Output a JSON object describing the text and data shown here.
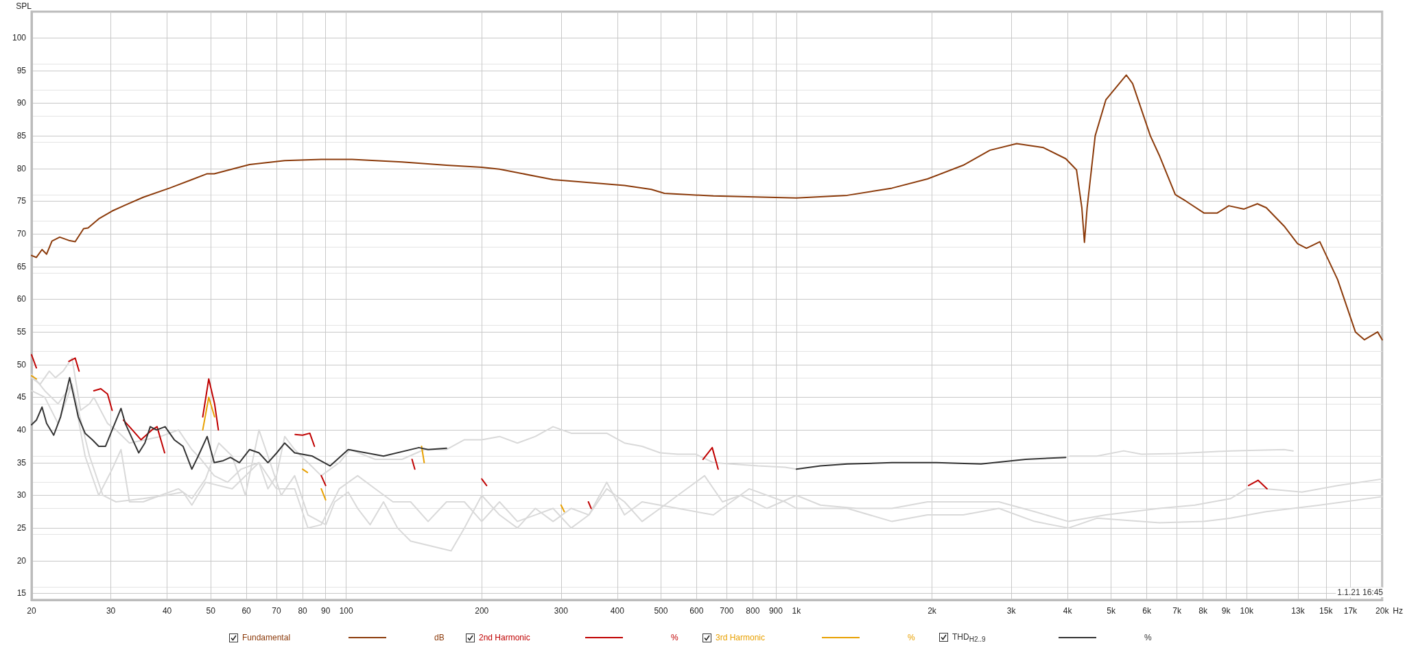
{
  "chart_data": {
    "type": "line",
    "ylabel": "SPL",
    "log": "x",
    "grid": true,
    "legend": "bottom",
    "marker": "none",
    "line_style": "solid",
    "xlim": [
      20,
      20000
    ],
    "ylim": [
      14,
      104
    ],
    "xticks": [
      20,
      30,
      40,
      50,
      60,
      70,
      80,
      90,
      100,
      200,
      300,
      400,
      500,
      600,
      700,
      800,
      900,
      {
        "value": 1000,
        "label": "1k"
      },
      {
        "value": 2000,
        "label": "2k"
      },
      {
        "value": 3000,
        "label": "3k"
      },
      {
        "value": 4000,
        "label": "4k"
      },
      {
        "value": 5000,
        "label": "5k"
      },
      {
        "value": 6000,
        "label": "6k"
      },
      {
        "value": 7000,
        "label": "7k"
      },
      {
        "value": 8000,
        "label": "8k"
      },
      {
        "value": 9000,
        "label": "9k"
      },
      {
        "value": 10000,
        "label": "10k"
      },
      {
        "value": 13000,
        "label": "13k"
      },
      {
        "value": 15000,
        "label": "15k"
      },
      {
        "value": 17000,
        "label": "17k"
      },
      {
        "value": 20000,
        "label": "20k"
      }
    ],
    "xlabel": "Hz",
    "yticks": [
      15,
      20,
      25,
      30,
      35,
      40,
      45,
      50,
      55,
      60,
      65,
      70,
      75,
      80,
      85,
      90,
      95,
      100
    ],
    "annotations": [
      "dB",
      "%",
      "%",
      "%",
      "1.1.21 16:45"
    ],
    "series": [
      {
        "color": "#d9d9d9",
        "x": [
          20,
          20.9,
          21.9,
          22.6,
          23.5,
          24.6,
          25.7,
          26.9,
          27.5,
          29.5,
          30.8,
          33.0,
          38.7,
          42.4,
          45.4,
          47.6,
          50.9,
          54.5,
          58.4,
          64,
          67,
          70,
          73,
          76.8,
          82.2,
          88,
          96.5,
          102,
          116,
          133,
          149,
          167,
          183,
          200,
          219,
          240,
          263,
          288,
          316,
          346,
          379,
          415,
          454,
          498,
          545,
          597,
          654,
          717,
          822,
          943,
          1000,
          1131,
          4050,
          4650,
          5332,
          5840,
          7008,
          9210,
          12108,
          12680
        ],
        "values": [
          48,
          47,
          49,
          48,
          49,
          51,
          43,
          44,
          45,
          41,
          40,
          38,
          39,
          40,
          37,
          35.5,
          33,
          32,
          34,
          35,
          31,
          33,
          39,
          37,
          35,
          33,
          35,
          37,
          35.5,
          35.5,
          37,
          37,
          38.5,
          38.5,
          39,
          38,
          39,
          40.5,
          39.5,
          39.5,
          39.5,
          38,
          37.5,
          36.5,
          36.3,
          36.3,
          35,
          34.8,
          34.5,
          34.3,
          34,
          null,
          36,
          36,
          36.8,
          36.3,
          36.4,
          36.8,
          37,
          36.8
        ]
      },
      {
        "color": "#d9d9d9",
        "x": [
          20,
          21.4,
          22.9,
          24.6,
          26.3,
          28.2,
          30.2,
          31.6,
          33.0,
          35.4,
          38.7,
          42.4,
          45.4,
          48.7,
          52.1,
          55.8,
          59.7,
          64,
          67,
          71.7,
          76.8,
          82.2,
          90.1,
          94.3,
          101,
          106,
          113,
          121,
          130,
          139,
          149,
          171,
          183,
          200,
          219,
          240,
          263,
          288,
          316,
          346,
          379,
          415,
          454,
          498,
          545,
          625,
          685,
          751,
          860,
          1000,
          1131,
          1358,
          1630,
          1954,
          2346,
          2816,
          3380,
          4020,
          4866,
          6398,
          7676,
          9210,
          10000,
          11056,
          13272,
          15924,
          20000
        ],
        "values": [
          48.5,
          46,
          44,
          47,
          36,
          30,
          34,
          37,
          29,
          29,
          30,
          31,
          29.5,
          32.5,
          38,
          36,
          30,
          40,
          36,
          30,
          33,
          27,
          25.5,
          29,
          30.5,
          28,
          25.5,
          29,
          25,
          23,
          22.5,
          21.5,
          25,
          30,
          27,
          25,
          28,
          26,
          28,
          27,
          31,
          29,
          26,
          28,
          30,
          33,
          29,
          30,
          28,
          30,
          28.5,
          28,
          28,
          29,
          29,
          29,
          27.5,
          26,
          27,
          28,
          28.5,
          29.5,
          31,
          31,
          30.5,
          31.5,
          32.5
        ]
      },
      {
        "color": "#d9d9d9",
        "x": [
          20,
          21.4,
          22.9,
          24.6,
          26.9,
          28.8,
          30.8,
          35.4,
          39.6,
          43.4,
          45.4,
          48.7,
          55.8,
          64,
          70,
          76.8,
          82.2,
          88,
          96.5,
          106,
          116,
          127,
          139,
          152,
          167,
          183,
          200,
          219,
          240,
          263,
          288,
          316,
          346,
          379,
          415,
          454,
          545,
          654,
          785,
          943,
          1000,
          1297,
          1630,
          1954,
          2346,
          2816,
          3380,
          4020,
          4650,
          6398,
          8036,
          9210,
          11056,
          14538,
          20000
        ],
        "values": [
          46,
          45,
          41,
          47,
          36,
          30,
          29,
          29.5,
          30,
          30.5,
          28.5,
          32,
          31,
          35,
          31,
          31,
          25,
          25.5,
          31,
          33,
          31,
          29,
          29,
          26,
          29,
          29,
          26,
          29,
          26,
          27,
          28,
          25,
          27,
          32,
          27,
          29,
          28,
          27,
          31,
          29,
          28,
          28,
          26,
          27,
          27,
          28,
          26,
          25,
          26.5,
          25.8,
          26,
          26.5,
          27.5,
          28.5,
          29.8
        ]
      },
      {
        "name": "Fundamental",
        "color": "#8b3a0a",
        "x": [
          20,
          20.5,
          21.1,
          21.6,
          22.2,
          23.1,
          24.2,
          25.0,
          26.1,
          26.7,
          28.2,
          30.2,
          32.3,
          35.4,
          40.5,
          45.4,
          49.1,
          50.9,
          61,
          73,
          88,
          103,
          133,
          167,
          200,
          219,
          288,
          415,
          476,
          509,
          654,
          1000,
          1297,
          1630,
          1954,
          2346,
          2690,
          3084,
          3537,
          3964,
          4188,
          4304,
          4362,
          4422,
          4608,
          4866,
          5404,
          5580,
          6110,
          6398,
          6942,
          7334,
          8036,
          8605,
          9126,
          9864,
          10564,
          11056,
          12108,
          12972,
          13578,
          14538,
          15924,
          17440,
          18254,
          19540,
          20000
        ],
        "values": [
          66.7,
          66.4,
          67.6,
          66.9,
          68.9,
          69.5,
          69.0,
          68.8,
          70.8,
          70.9,
          72.3,
          73.5,
          74.4,
          75.6,
          77.0,
          78.3,
          79.2,
          79.2,
          80.6,
          81.2,
          81.4,
          81.4,
          81.0,
          80.5,
          80.2,
          79.9,
          78.3,
          77.4,
          76.8,
          76.2,
          75.8,
          75.5,
          75.9,
          77.0,
          78.4,
          80.5,
          82.8,
          83.8,
          83.2,
          81.5,
          79.8,
          74,
          68.7,
          74,
          85,
          90.5,
          94.3,
          93,
          85,
          82,
          76,
          75,
          73.2,
          73.2,
          74.3,
          73.8,
          74.6,
          74.0,
          71.2,
          68.5,
          67.8,
          68.8,
          63,
          55,
          53.8,
          55,
          53.8
        ]
      },
      {
        "name": "2nd Harmonic",
        "color": "#c00000",
        "x": [
          20,
          20.5,
          21.5,
          24.2,
          25,
          25.5,
          26,
          27.5,
          28.5,
          29.5,
          30.2,
          31,
          32,
          33,
          35,
          37,
          38,
          39.5,
          42,
          48,
          49.5,
          51,
          52,
          60,
          77,
          80,
          83,
          85,
          87,
          88,
          90,
          100,
          140,
          142,
          160,
          200,
          205,
          240,
          345,
          350,
          600,
          620,
          650,
          670,
          10000,
          10100,
          10600,
          11100
        ],
        "values": [
          51.5,
          49.5,
          null,
          50.5,
          51,
          49,
          null,
          46,
          46.3,
          45.5,
          43,
          null,
          41.5,
          40.5,
          38.5,
          40,
          40.5,
          36.5,
          null,
          42,
          47.8,
          44,
          40,
          null,
          39.3,
          39.2,
          39.5,
          37.5,
          null,
          33,
          31.5,
          null,
          35.5,
          34,
          null,
          32.5,
          31.5,
          null,
          29,
          28,
          null,
          35.5,
          37.3,
          34,
          null,
          31.5,
          32.3,
          31.0
        ]
      },
      {
        "name": "3rd Harmonic",
        "color": "#e8a000",
        "x": [
          20,
          20.5,
          22,
          48,
          49.5,
          51,
          60,
          80,
          82,
          87,
          88,
          90,
          100,
          147,
          149,
          200,
          300,
          305
        ],
        "values": [
          48.3,
          47.8,
          null,
          40,
          45,
          42,
          null,
          34,
          33.5,
          null,
          31,
          29.3,
          null,
          37.5,
          35,
          null,
          28.5,
          27.5
        ]
      },
      {
        "name": "THD$_{H2..9}$",
        "color": "#333333",
        "x": [
          20,
          20.5,
          21.1,
          21.6,
          22.4,
          23.2,
          24.3,
          25.4,
          26.3,
          27.3,
          28.2,
          29.2,
          30.2,
          31.6,
          32.3,
          33.8,
          34.6,
          35.7,
          36.7,
          37.9,
          39.6,
          41.5,
          43.4,
          45.4,
          46.9,
          49.1,
          50.9,
          53.3,
          55.3,
          57.9,
          61,
          64,
          67,
          70.1,
          73,
          76.8,
          84.1,
          92.1,
          101,
          121,
          145,
          152,
          167,
          300,
          1000,
          1131,
          1297,
          1630,
          2046,
          2570,
          3229,
          3964
        ],
        "values": [
          40.8,
          41.5,
          43.5,
          41,
          39.2,
          42,
          48,
          42,
          39.5,
          38.5,
          37.5,
          37.5,
          40,
          43.3,
          41,
          38,
          36.5,
          38,
          40.5,
          40,
          40.5,
          38.5,
          37.5,
          34,
          36,
          39,
          35,
          35.3,
          35.8,
          35,
          37,
          36.5,
          35,
          36.5,
          38,
          36.5,
          36,
          34.5,
          37,
          36,
          37.3,
          37,
          37.2,
          null,
          34,
          34.5,
          34.8,
          35,
          35,
          34.8,
          35.5,
          35.8
        ]
      }
    ]
  }
}
